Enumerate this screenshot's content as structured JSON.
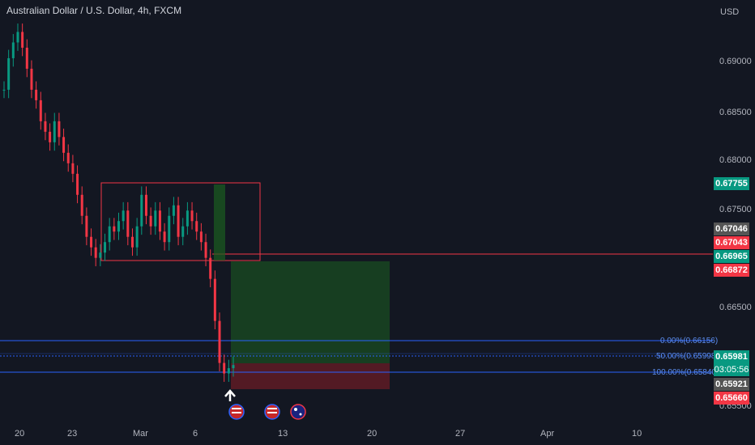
{
  "header": {
    "title": "Australian Dollar / U.S. Dollar, 4h, FXCM"
  },
  "axis": {
    "currency": "USD",
    "price_ticks": [
      "0.69000",
      "0.68500",
      "0.68000",
      "0.67500",
      "0.66500",
      "0.65500"
    ],
    "time_ticks": [
      "20",
      "23",
      "Mar",
      "6",
      "13",
      "20",
      "27",
      "Apr",
      "10"
    ]
  },
  "price_labels": [
    {
      "text": "0.67755",
      "color": "#089981"
    },
    {
      "text": "0.67046",
      "color": "#555555"
    },
    {
      "text": "0.67043",
      "color": "#f23645"
    },
    {
      "text": "0.66965",
      "color": "#089981"
    },
    {
      "text": "0.66872",
      "color": "#f23645"
    },
    {
      "text": "0.65981",
      "color": "#089981"
    },
    {
      "text": "03:05:56",
      "color": "#089981"
    },
    {
      "text": "0.65921",
      "color": "#555555"
    },
    {
      "text": "0.65660",
      "color": "#f23645"
    }
  ],
  "fib": [
    {
      "label": "0.00%(0.66156)"
    },
    {
      "label": "50.00%(0.65998)"
    },
    {
      "label": "100.00%(0.65840)"
    }
  ],
  "chart_data": {
    "type": "candlestick",
    "symbol": "AUDUSD",
    "price_range": [
      0.6545,
      0.693
    ],
    "close_series": [
      0.686,
      0.689,
      0.6905,
      0.6915,
      0.69,
      0.688,
      0.686,
      0.685,
      0.683,
      0.682,
      0.681,
      0.683,
      0.6815,
      0.68,
      0.679,
      0.678,
      0.676,
      0.674,
      0.672,
      0.671,
      0.67,
      0.6705,
      0.6715,
      0.673,
      0.6725,
      0.6735,
      0.6745,
      0.672,
      0.671,
      0.673,
      0.676,
      0.674,
      0.673,
      0.6745,
      0.6725,
      0.6715,
      0.674,
      0.675,
      0.672,
      0.673,
      0.6745,
      0.6735,
      0.6725,
      0.6715,
      0.67,
      0.668,
      0.664,
      0.66,
      0.659,
      0.6595,
      0.6598
    ]
  },
  "icons": [
    "us-flag-icon",
    "us-flag-icon",
    "au-flag-icon"
  ]
}
